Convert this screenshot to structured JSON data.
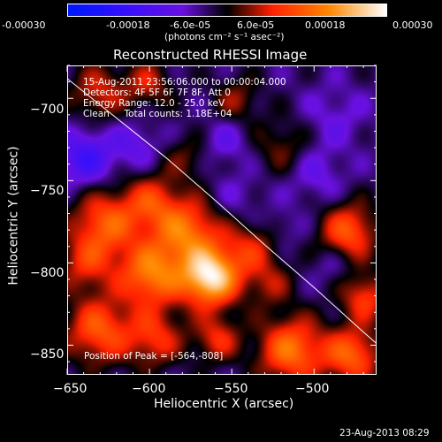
{
  "colorbar": {
    "tick_labels": [
      "-0.00030",
      "-0.00018",
      "-6.0e-05",
      "6.0e-05",
      "0.00018",
      "0.00030"
    ],
    "range": [
      -0.0003,
      0.0003
    ],
    "unit_label": "(photons cm⁻² s⁻¹ asec⁻²)",
    "colors": [
      "#0018ff",
      "#3010ff",
      "#6a10e0",
      "#000000",
      "#ff2000",
      "#ff8800",
      "#ffffff"
    ]
  },
  "title": "Reconstructed RHESSI Image",
  "info": {
    "line1": "15-Aug-2011 23:56:06.000 to 00:00:04.000",
    "line2": "Detectors: 4F 5F 6F 7F 8F, Att 0",
    "line3": "Energy Range: 12.0 - 25.0 keV",
    "line4": "Clean     Total counts: 1.18E+04",
    "peak": "Position of Peak = [-564,-808]"
  },
  "footer_timestamp": "23-Aug-2013 08:29",
  "chart_data": {
    "type": "heatmap",
    "title": "Reconstructed RHESSI Image",
    "xlabel": "Heliocentric X (arcsec)",
    "ylabel": "Heliocentric Y (arcsec)",
    "xlim": [
      -650,
      -462
    ],
    "ylim": [
      -868,
      -680
    ],
    "x_ticks": [
      -650,
      -600,
      -550,
      -500
    ],
    "y_ticks": [
      -700,
      -750,
      -800,
      -850
    ],
    "x_tick_labels": [
      "−650",
      "−600",
      "−550",
      "−500"
    ],
    "y_tick_labels": [
      "−700",
      "−750",
      "−800",
      "−850"
    ],
    "peak_position": [
      -564,
      -808
    ],
    "limb_curve": [
      [
        -650,
        -688
      ],
      [
        -620,
        -712
      ],
      [
        -590,
        -736
      ],
      [
        -560,
        -762
      ],
      [
        -530,
        -789
      ],
      [
        -500,
        -815
      ],
      [
        -470,
        -842
      ],
      [
        -462,
        -849
      ]
    ],
    "blobs": [
      {
        "x": -564,
        "y": -808,
        "s": 12,
        "v": 0.0003
      },
      {
        "x": -600,
        "y": -806,
        "s": 14,
        "v": 0.0002
      },
      {
        "x": -578,
        "y": -780,
        "s": 14,
        "v": 0.00018
      },
      {
        "x": -628,
        "y": -775,
        "s": 14,
        "v": 0.00016
      },
      {
        "x": -600,
        "y": -762,
        "s": 12,
        "v": 0.00012
      },
      {
        "x": -640,
        "y": -800,
        "s": 12,
        "v": 0.0001
      },
      {
        "x": -632,
        "y": -840,
        "s": 14,
        "v": 0.00016
      },
      {
        "x": -598,
        "y": -845,
        "s": 12,
        "v": 0.00012
      },
      {
        "x": -560,
        "y": -845,
        "s": 10,
        "v": 0.00011
      },
      {
        "x": -540,
        "y": -790,
        "s": 12,
        "v": 0.0001
      },
      {
        "x": -528,
        "y": -812,
        "s": 10,
        "v": 7e-05
      },
      {
        "x": -480,
        "y": -780,
        "s": 12,
        "v": 0.00016
      },
      {
        "x": -470,
        "y": -820,
        "s": 10,
        "v": 0.00013
      },
      {
        "x": -515,
        "y": -852,
        "s": 14,
        "v": 0.00019
      },
      {
        "x": -478,
        "y": -855,
        "s": 12,
        "v": 0.00017
      },
      {
        "x": -632,
        "y": -695,
        "s": 12,
        "v": 0.0001
      },
      {
        "x": -602,
        "y": -690,
        "s": 10,
        "v": 9e-05
      },
      {
        "x": -548,
        "y": -700,
        "s": 10,
        "v": 7e-05
      },
      {
        "x": -578,
        "y": -735,
        "s": 10,
        "v": 5e-05
      },
      {
        "x": -520,
        "y": -728,
        "s": 12,
        "v": 6e-05
      },
      {
        "x": -488,
        "y": -710,
        "s": 14,
        "v": -6e-05
      },
      {
        "x": -548,
        "y": -760,
        "s": 12,
        "v": -5e-05
      },
      {
        "x": -640,
        "y": -735,
        "s": 12,
        "v": -0.00014
      },
      {
        "x": -610,
        "y": -728,
        "s": 10,
        "v": -8e-05
      },
      {
        "x": -555,
        "y": -725,
        "s": 10,
        "v": -7e-05
      },
      {
        "x": -500,
        "y": -745,
        "s": 12,
        "v": -7e-05
      },
      {
        "x": -520,
        "y": -778,
        "s": 8,
        "v": -5e-05
      },
      {
        "x": -490,
        "y": -800,
        "s": 8,
        "v": -5e-05
      }
    ],
    "background_value": -4e-05,
    "grid": false
  }
}
